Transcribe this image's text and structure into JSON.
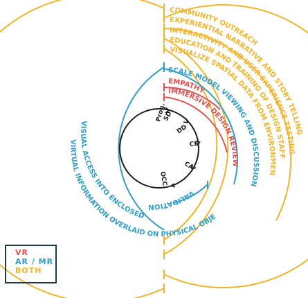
{
  "colors": {
    "vr": "#e0504e",
    "armr": "#2f9ec7",
    "both": "#f3b42a",
    "core": "#1a1a1a",
    "legend_border": "#1b3b4d"
  },
  "phases": [
    "Prog.",
    "SD",
    "DD",
    "CD",
    "CA",
    "OCC."
  ],
  "labels": {
    "community": "COMMUNITY OUTREACH",
    "narrative": "EXPERIENTIAL NARRATIVE AND STORY TELLING",
    "interactivity": "INTERACTIVITY AND USER EXPERIENCE TESTING",
    "education": "EDUCATION AND TRAINING OF DESIGN STAFF",
    "spatial": "VISUALIZE SPATIAL DATA FROM ENVIRONMENTAL",
    "scale": "SCALE MODEL VIEWING AND DISCUSSION",
    "empathy": "EMPATHY",
    "immersive": "IMMERSIVE DESIGN REVIEW",
    "validation": "VALIDATION",
    "visual_access": "VISUAL ACCESS INTO ENCLOSED SPACES",
    "virtual_info": "VIRTUAL INFORMATION OVERLAID ON PHYSICAL OBJECTS"
  },
  "legend": {
    "vr": "VR",
    "armr": "AR / MR",
    "both": "BOTH"
  }
}
